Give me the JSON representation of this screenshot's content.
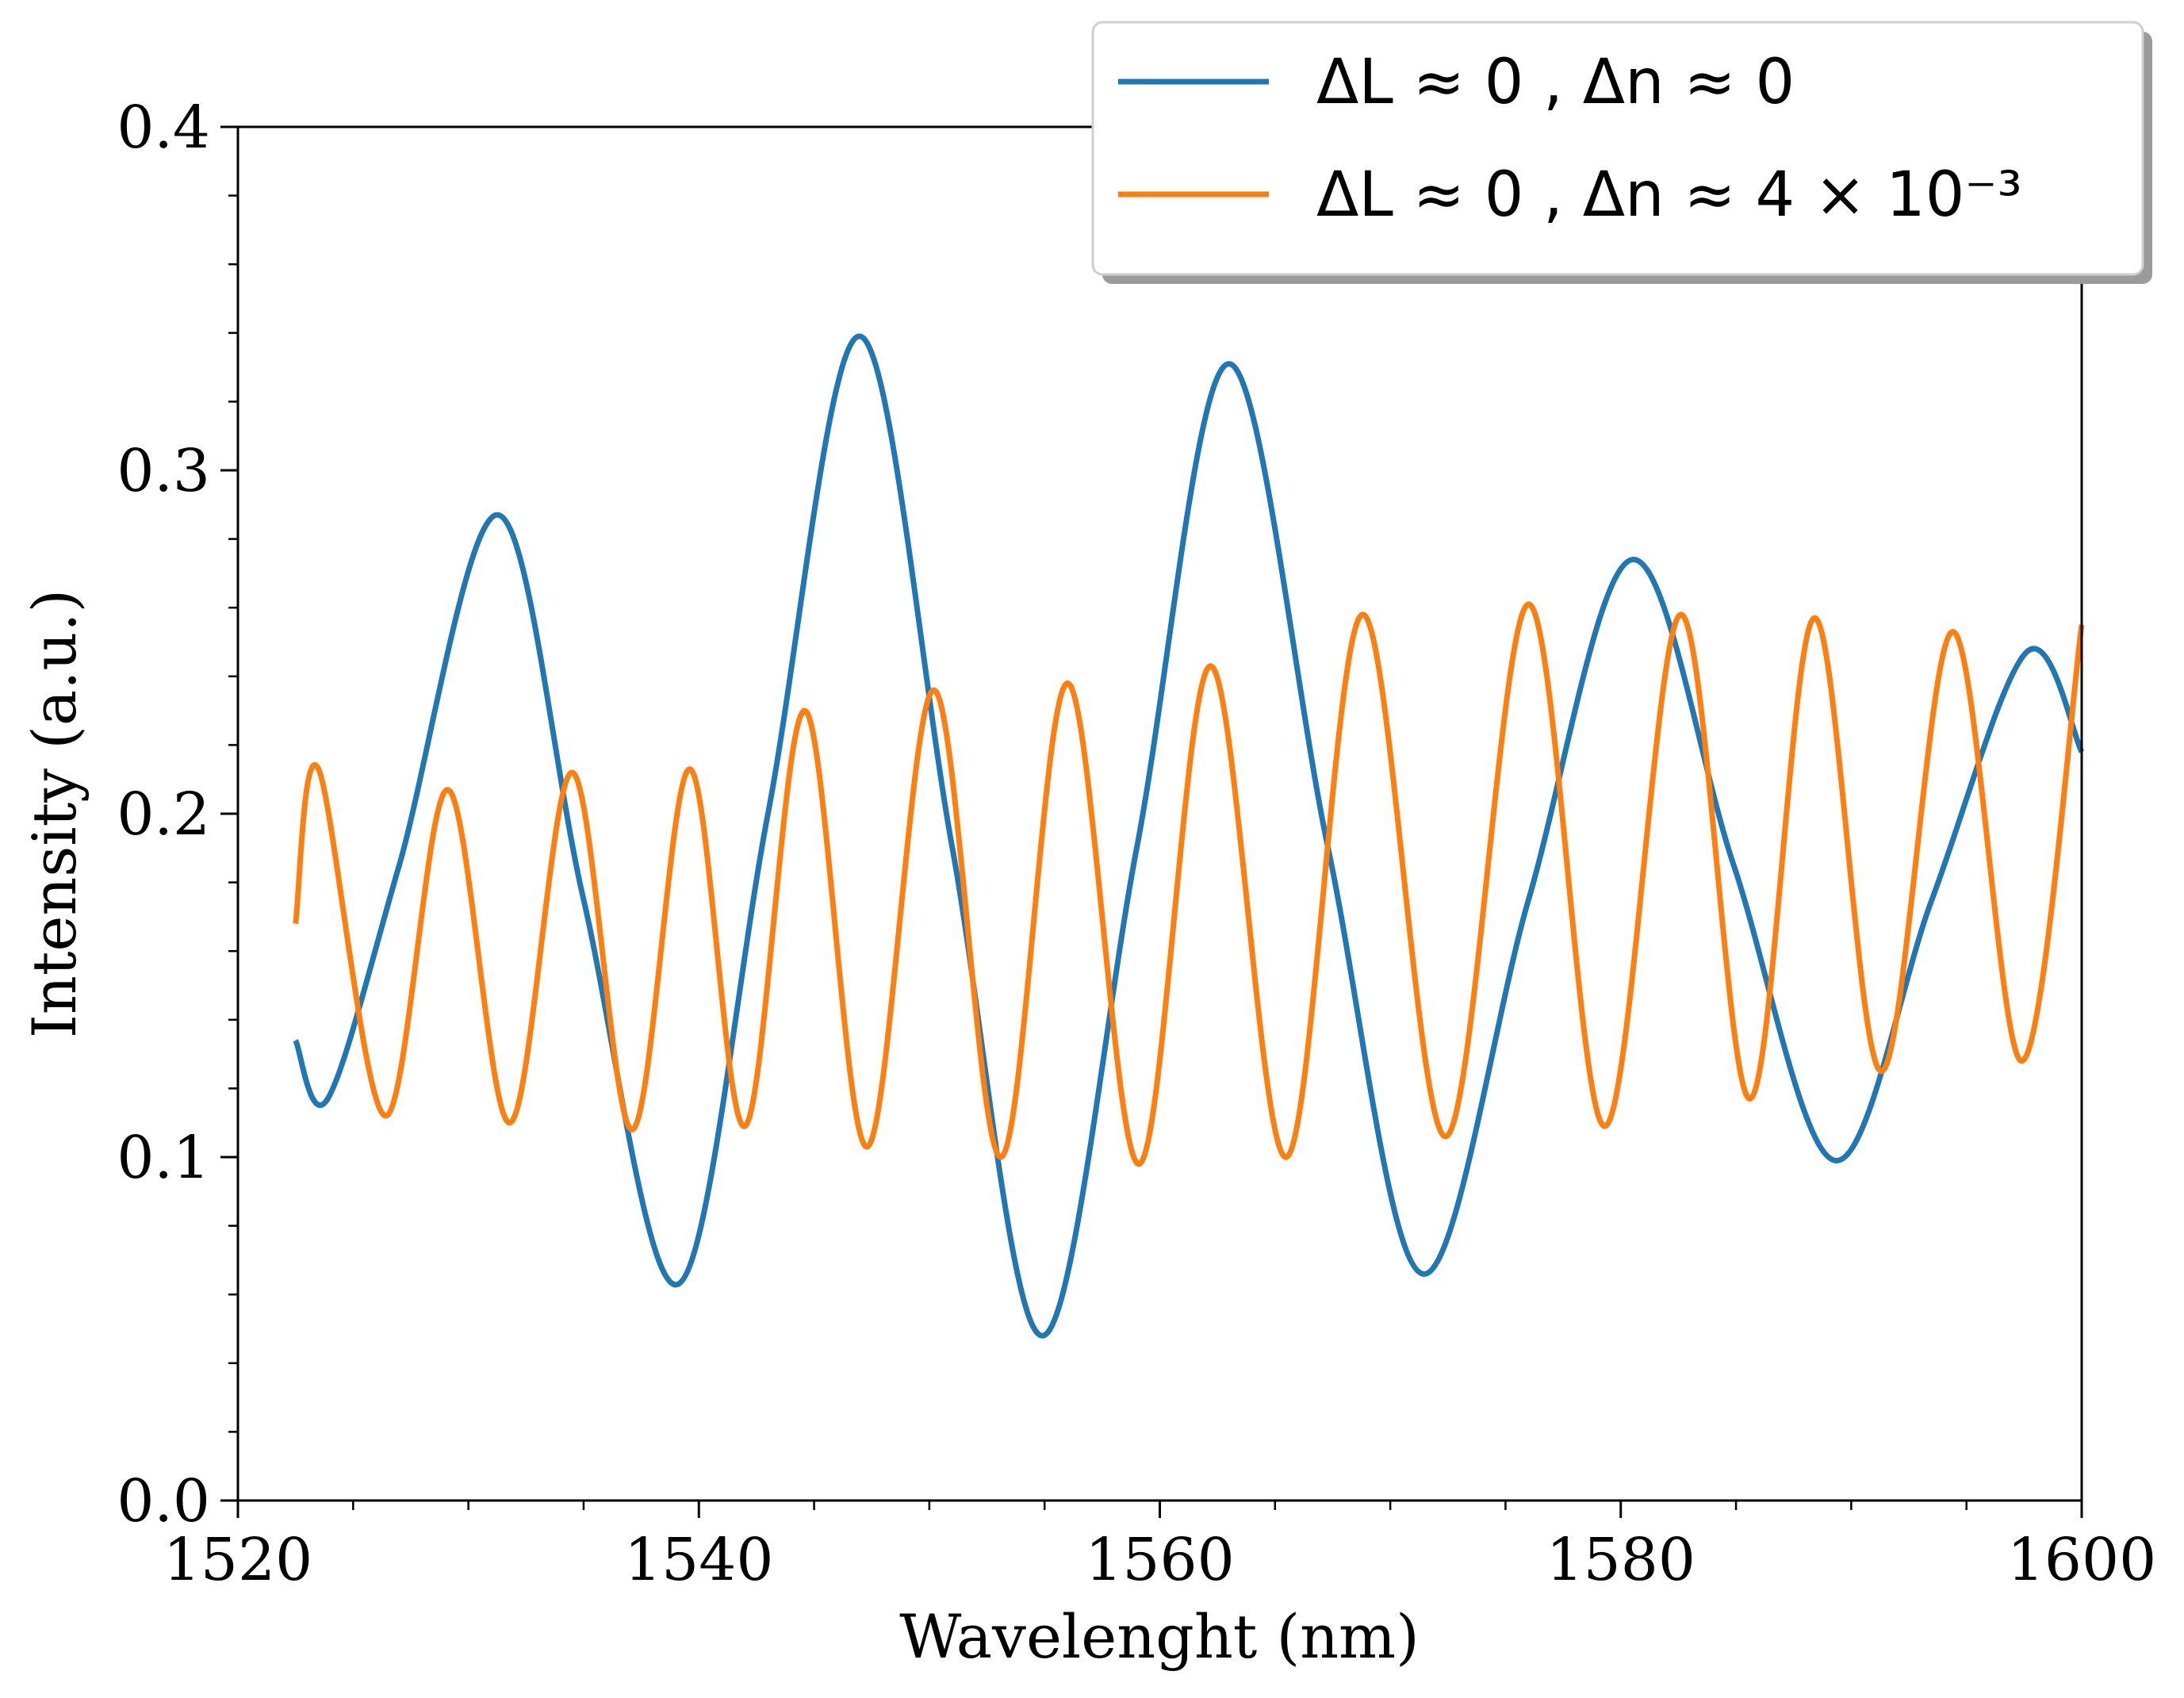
{
  "chart_data": {
    "type": "line",
    "title": "",
    "xlabel": "Wavelenght (nm)",
    "ylabel": "Intensity (a.u.)",
    "xlim": [
      1520,
      1600
    ],
    "ylim": [
      0.0,
      0.4
    ],
    "grid": false,
    "legend_position": "top-right",
    "x_ticks": [
      "1520",
      "1540",
      "1560",
      "1580",
      "1600"
    ],
    "y_ticks": [
      "0.0",
      "0.1",
      "0.2",
      "0.3",
      "0.4"
    ],
    "series": [
      {
        "name": "ΔL ≈ 0 , Δn ≈ 0",
        "color": "#1f77b4",
        "x": [
          1522.5,
          1523.9,
          1527.0,
          1531.3,
          1535.0,
          1539.1,
          1543.0,
          1547.0,
          1551.0,
          1554.9,
          1559.0,
          1563.0,
          1567.3,
          1571.4,
          1576.0,
          1580.5,
          1584.9,
          1589.3,
          1593.5,
          1597.6,
          1600.0
        ],
        "values": [
          0.134,
          0.117,
          0.185,
          0.287,
          0.175,
          0.063,
          0.2,
          0.339,
          0.19,
          0.048,
          0.19,
          0.331,
          0.19,
          0.066,
          0.175,
          0.274,
          0.185,
          0.099,
          0.175,
          0.247,
          0.218
        ]
      },
      {
        "name": "ΔL ≈ 0 , Δn ≈ 4 × 10⁻³",
        "color": "#ff7f0e",
        "x": [
          1522.5,
          1523.5,
          1526.4,
          1529.1,
          1531.8,
          1534.5,
          1537.1,
          1539.6,
          1542.0,
          1544.6,
          1547.3,
          1550.2,
          1553.1,
          1556.0,
          1559.1,
          1562.2,
          1565.5,
          1568.8,
          1572.4,
          1576.0,
          1579.3,
          1582.6,
          1585.6,
          1588.4,
          1591.3,
          1594.4,
          1597.4,
          1600.0
        ],
        "values": [
          0.168,
          0.213,
          0.112,
          0.207,
          0.11,
          0.212,
          0.108,
          0.213,
          0.109,
          0.23,
          0.103,
          0.236,
          0.1,
          0.238,
          0.098,
          0.243,
          0.1,
          0.258,
          0.106,
          0.261,
          0.109,
          0.258,
          0.117,
          0.257,
          0.125,
          0.253,
          0.128,
          0.255
        ]
      }
    ]
  }
}
